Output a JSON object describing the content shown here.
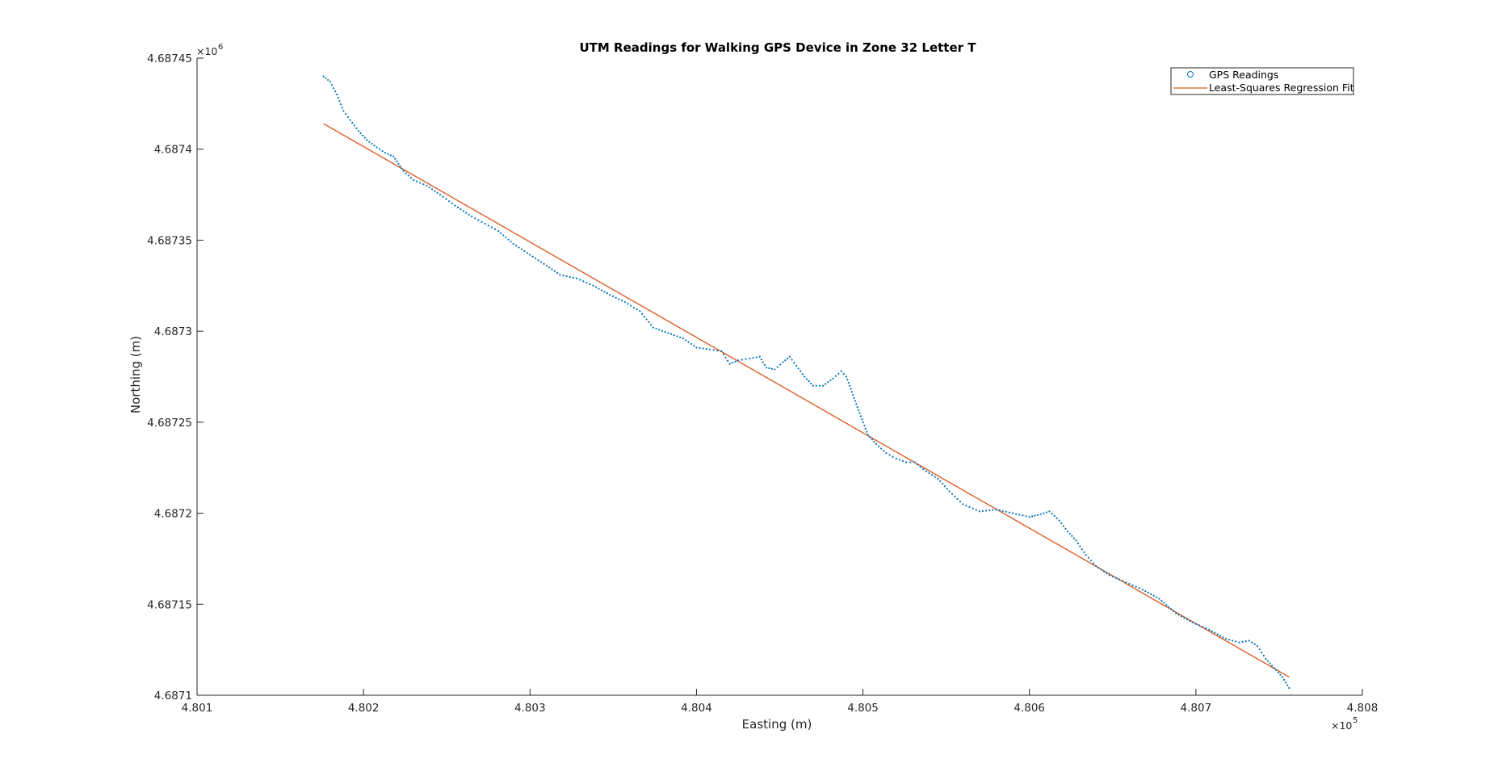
{
  "chart_data": {
    "type": "scatter",
    "title": "UTM Readings for Walking GPS Device in Zone 32 Letter T",
    "xlabel": "Easting (m)",
    "ylabel": "Northing (m)",
    "xlim": [
      480100,
      480800
    ],
    "ylim": [
      4687100,
      4687450
    ],
    "x_ticks": [
      480100,
      480200,
      480300,
      480400,
      480500,
      480600,
      480700,
      480800
    ],
    "x_tick_labels": [
      "4.801",
      "4.802",
      "4.803",
      "4.804",
      "4.805",
      "4.806",
      "4.807",
      "4.808"
    ],
    "x_exponent": "5",
    "y_ticks": [
      4687100,
      4687150,
      4687200,
      4687250,
      4687300,
      4687350,
      4687400,
      4687450
    ],
    "y_tick_labels": [
      "4.6871",
      "4.68715",
      "4.6872",
      "4.68725",
      "4.6873",
      "4.68735",
      "4.6874",
      "4.68745"
    ],
    "y_exponent": "6",
    "grid": false,
    "legend_position": "top-right",
    "colors": {
      "gps": "#0072BD",
      "fit": "#D95319",
      "axes": "#262626"
    },
    "series": [
      {
        "name": "GPS Readings",
        "kind": "points",
        "points": [
          [
            480176,
            4687440
          ],
          [
            480180,
            4687437
          ],
          [
            480184,
            4687430
          ],
          [
            480188,
            4687421
          ],
          [
            480192,
            4687416
          ],
          [
            480197,
            4687410
          ],
          [
            480202,
            4687405
          ],
          [
            480208,
            4687401
          ],
          [
            480213,
            4687398
          ],
          [
            480218,
            4687396
          ],
          [
            480221,
            4687392
          ],
          [
            480224,
            4687388
          ],
          [
            480230,
            4687383
          ],
          [
            480238,
            4687380
          ],
          [
            480246,
            4687375
          ],
          [
            480255,
            4687369
          ],
          [
            480265,
            4687363
          ],
          [
            480273,
            4687359
          ],
          [
            480281,
            4687355
          ],
          [
            480290,
            4687348
          ],
          [
            480300,
            4687342
          ],
          [
            480310,
            4687336
          ],
          [
            480318,
            4687331
          ],
          [
            480328,
            4687329
          ],
          [
            480338,
            4687325
          ],
          [
            480348,
            4687320
          ],
          [
            480357,
            4687316
          ],
          [
            480366,
            4687311
          ],
          [
            480374,
            4687302
          ],
          [
            480383,
            4687299
          ],
          [
            480392,
            4687296
          ],
          [
            480400,
            4687291
          ],
          [
            480408,
            4687290
          ],
          [
            480415,
            4687289
          ],
          [
            480420,
            4687282
          ],
          [
            480425,
            4687284
          ],
          [
            480432,
            4687285
          ],
          [
            480438,
            4687286
          ],
          [
            480442,
            4687280
          ],
          [
            480447,
            4687279
          ],
          [
            480452,
            4687283
          ],
          [
            480456,
            4687286
          ],
          [
            480460,
            4687281
          ],
          [
            480465,
            4687275
          ],
          [
            480470,
            4687270
          ],
          [
            480476,
            4687270
          ],
          [
            480482,
            4687274
          ],
          [
            480487,
            4687278
          ],
          [
            480490,
            4687275
          ],
          [
            480494,
            4687265
          ],
          [
            480498,
            4687255
          ],
          [
            480503,
            4687243
          ],
          [
            480508,
            4687238
          ],
          [
            480514,
            4687233
          ],
          [
            480520,
            4687230
          ],
          [
            480526,
            4687228
          ],
          [
            480531,
            4687228
          ],
          [
            480538,
            4687223
          ],
          [
            480545,
            4687219
          ],
          [
            480552,
            4687212
          ],
          [
            480560,
            4687205
          ],
          [
            480570,
            4687201
          ],
          [
            480580,
            4687202
          ],
          [
            480590,
            4687200
          ],
          [
            480600,
            4687198
          ],
          [
            480605,
            4687199
          ],
          [
            480612,
            4687201
          ],
          [
            480618,
            4687196
          ],
          [
            480623,
            4687190
          ],
          [
            480628,
            4687185
          ],
          [
            480634,
            4687177
          ],
          [
            480640,
            4687171
          ],
          [
            480648,
            4687166
          ],
          [
            480658,
            4687162
          ],
          [
            480668,
            4687158
          ],
          [
            480678,
            4687153
          ],
          [
            480688,
            4687145
          ],
          [
            480698,
            4687140
          ],
          [
            480708,
            4687136
          ],
          [
            480718,
            4687131
          ],
          [
            480726,
            4687129
          ],
          [
            480732,
            4687130
          ],
          [
            480737,
            4687127
          ],
          [
            480742,
            4687120
          ],
          [
            480747,
            4687115
          ],
          [
            480752,
            4687110
          ],
          [
            480756,
            4687104
          ]
        ]
      },
      {
        "name": "Least-Squares Regression Fit",
        "kind": "line",
        "points": [
          [
            480176,
            4687414
          ],
          [
            480756,
            4687110
          ]
        ]
      }
    ]
  }
}
